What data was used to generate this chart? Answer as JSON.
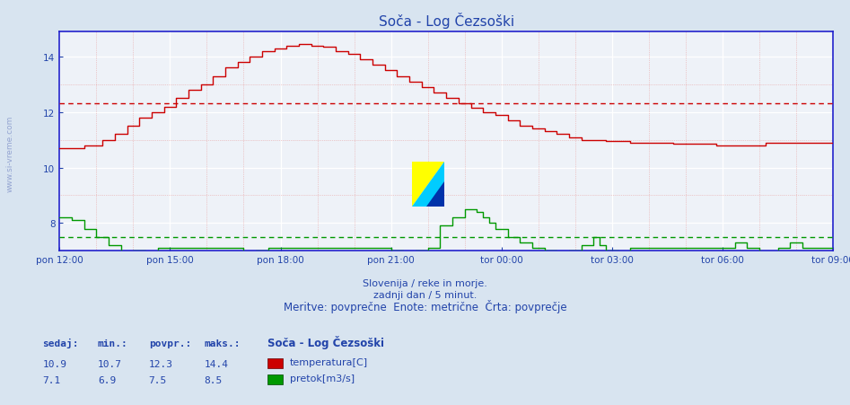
{
  "title": "Soča - Log Čezsoški",
  "bg_color": "#d8e4f0",
  "plot_bg": "#eef2f8",
  "grid_major_color": "#ffffff",
  "grid_minor_color": "#e8a0a0",
  "axis_color": "#2222cc",
  "text_color": "#2244aa",
  "subtitle_lines": [
    "Slovenija / reke in morje.",
    "zadnji dan / 5 minut.",
    "Meritve: povprečne  Enote: metrične  Črta: povprečje"
  ],
  "xlabel_ticks": [
    "pon 12:00",
    "pon 15:00",
    "pon 18:00",
    "pon 21:00",
    "tor 00:00",
    "tor 03:00",
    "tor 06:00",
    "tor 09:00"
  ],
  "ylim": [
    7.0,
    14.9
  ],
  "y_ticks": [
    8,
    10,
    12,
    14
  ],
  "temp_avg": 12.3,
  "flow_avg": 7.5,
  "temp_color": "#cc0000",
  "flow_color": "#009900",
  "legend_station": "Soča - Log Čezsoški",
  "stats_temp": {
    "sedaj": 10.9,
    "min": 10.7,
    "povpr": 12.3,
    "maks": 14.4
  },
  "stats_flow": {
    "sedaj": 7.1,
    "min": 6.9,
    "povpr": 7.5,
    "maks": 8.5
  }
}
